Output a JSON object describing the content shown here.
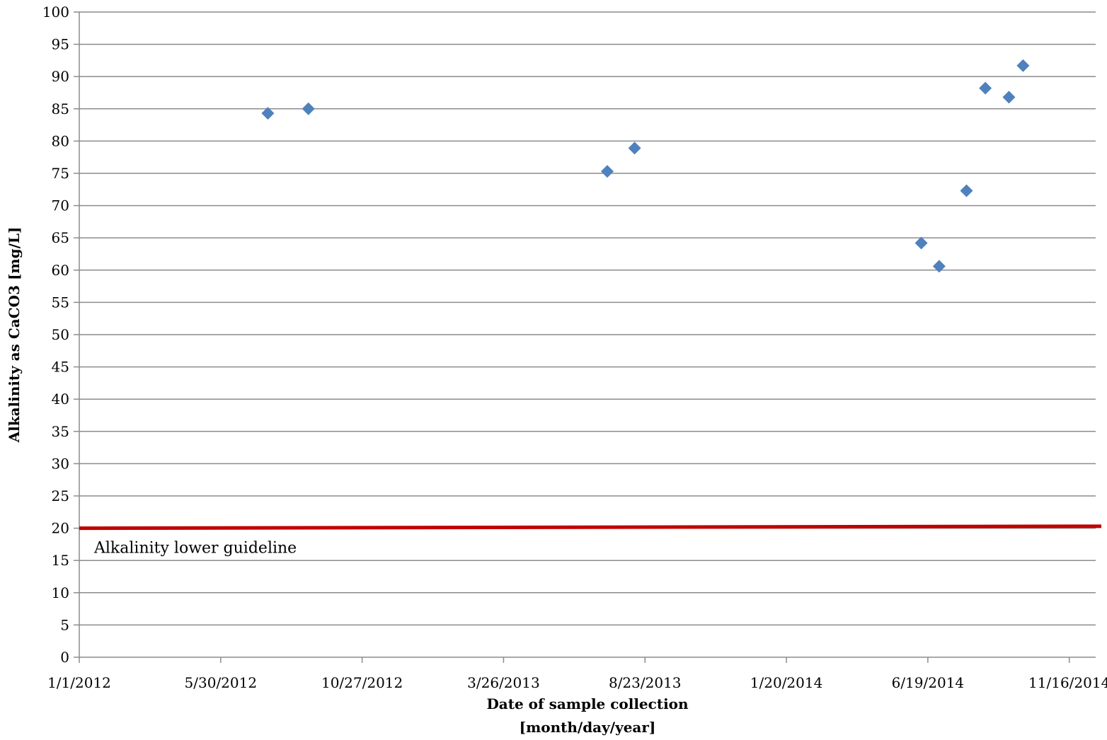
{
  "chart_data": {
    "type": "scatter",
    "xlabel_lines": [
      "Date of sample collection",
      "[month/day/year]"
    ],
    "ylabel": "Alkalinity as CaCO3 [mg/L]",
    "xlim": [
      "2012-01-01",
      "2014-12-14"
    ],
    "ylim": [
      0,
      100
    ],
    "y_ticks": [
      0,
      5,
      10,
      15,
      20,
      25,
      30,
      35,
      40,
      45,
      50,
      55,
      60,
      65,
      70,
      75,
      80,
      85,
      90,
      95,
      100
    ],
    "x_ticks": [
      {
        "date": "2012-01-01",
        "label": "1/1/2012"
      },
      {
        "date": "2012-05-30",
        "label": "5/30/2012"
      },
      {
        "date": "2012-10-27",
        "label": "10/27/2012"
      },
      {
        "date": "2013-03-26",
        "label": "3/26/2013"
      },
      {
        "date": "2013-08-23",
        "label": "8/23/2013"
      },
      {
        "date": "2014-01-20",
        "label": "1/20/2014"
      },
      {
        "date": "2014-06-19",
        "label": "6/19/2014"
      },
      {
        "date": "2014-11-16",
        "label": "11/16/2014"
      }
    ],
    "grid": true,
    "series": [
      {
        "marker": "diamond",
        "color": "#4f81bd",
        "points": [
          {
            "x": "2012-07-19",
            "y": 84.3
          },
          {
            "x": "2012-08-31",
            "y": 85.0
          },
          {
            "x": "2013-07-14",
            "y": 75.3
          },
          {
            "x": "2013-08-12",
            "y": 78.9
          },
          {
            "x": "2014-06-12",
            "y": 64.2
          },
          {
            "x": "2014-07-01",
            "y": 60.6
          },
          {
            "x": "2014-07-30",
            "y": 72.3
          },
          {
            "x": "2014-08-19",
            "y": 88.2
          },
          {
            "x": "2014-09-13",
            "y": 86.8
          },
          {
            "x": "2014-09-28",
            "y": 91.7
          }
        ]
      }
    ],
    "guideline": {
      "label": "Alkalinity lower guideline",
      "y_start": 20.0,
      "y_end": 20.3,
      "color": "#c00000"
    }
  }
}
